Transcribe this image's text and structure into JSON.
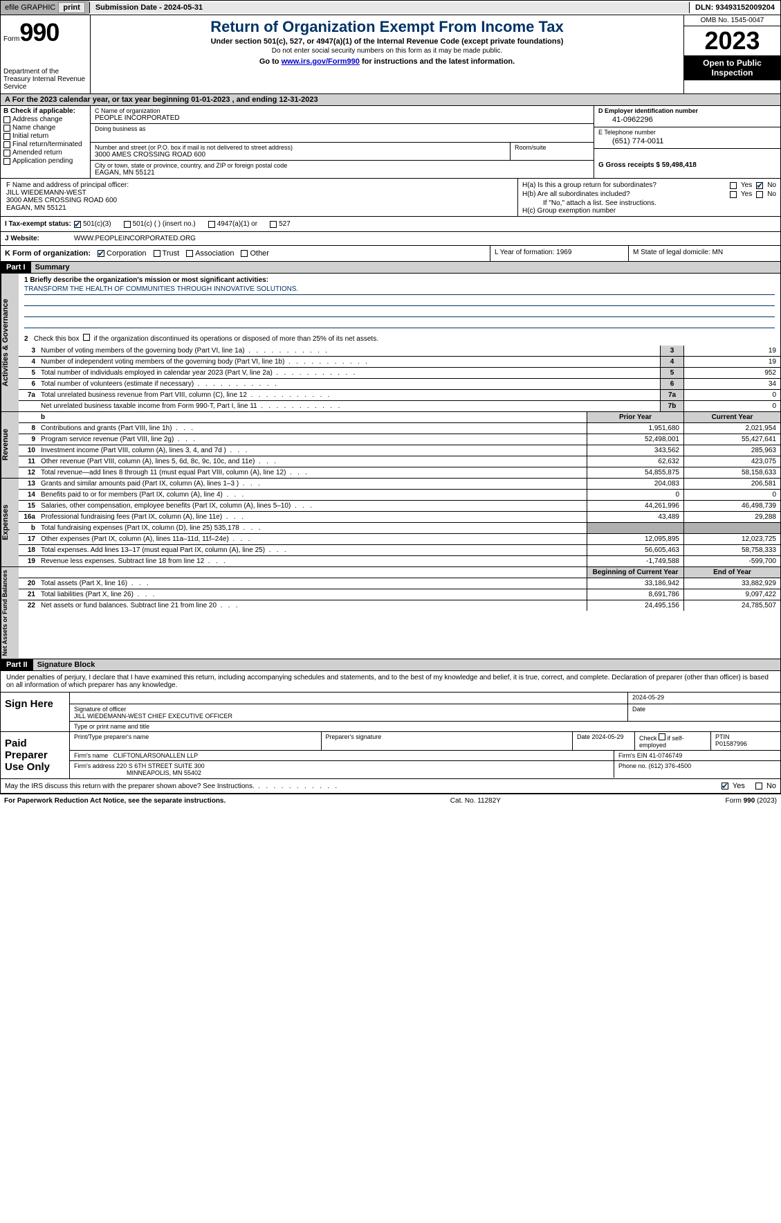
{
  "topbar": {
    "efile_label": "efile GRAPHIC",
    "print_btn": "print",
    "submission_label": "Submission Date - 2024-05-31",
    "dln_label": "DLN: 93493152009204"
  },
  "header": {
    "form_prefix": "Form",
    "form_number": "990",
    "dept": "Department of the Treasury Internal Revenue Service",
    "title": "Return of Organization Exempt From Income Tax",
    "sub": "Under section 501(c), 527, or 4947(a)(1) of the Internal Revenue Code (except private foundations)",
    "note": "Do not enter social security numbers on this form as it may be made public.",
    "link_prefix": "Go to ",
    "link_url": "www.irs.gov/Form990",
    "link_suffix": " for instructions and the latest information.",
    "omb": "OMB No. 1545-0047",
    "year": "2023",
    "open_pub": "Open to Public Inspection"
  },
  "period": {
    "text": "A  For the 2023 calendar year, or tax year beginning 01-01-2023   , and ending 12-31-2023"
  },
  "box_b": {
    "header": "B Check if applicable:",
    "items": [
      "Address change",
      "Name change",
      "Initial return",
      "Final return/terminated",
      "Amended return",
      "Application pending"
    ]
  },
  "box_c": {
    "name_lbl": "C Name of organization",
    "name_val": "PEOPLE INCORPORATED",
    "dba_lbl": "Doing business as",
    "street_lbl": "Number and street (or P.O. box if mail is not delivered to street address)",
    "street_val": "3000 AMES CROSSING ROAD 600",
    "room_lbl": "Room/suite",
    "city_lbl": "City or town, state or province, country, and ZIP or foreign postal code",
    "city_val": "EAGAN, MN  55121"
  },
  "box_d": {
    "ein_lbl": "D Employer identification number",
    "ein_val": "41-0962296",
    "tel_lbl": "E Telephone number",
    "tel_val": "(651) 774-0011",
    "gross_lbl": "G Gross receipts $ 59,498,418"
  },
  "box_f": {
    "lbl": "F  Name and address of principal officer:",
    "name": "JILL WIEDEMANN-WEST",
    "addr1": "3000 AMES CROSSING ROAD 600",
    "addr2": "EAGAN, MN  55121"
  },
  "box_h": {
    "a_lbl": "H(a)  Is this a group return for subordinates?",
    "b_lbl": "H(b)  Are all subordinates included?",
    "b_note": "If \"No,\" attach a list. See instructions.",
    "c_lbl": "H(c)  Group exemption number",
    "yes": "Yes",
    "no": "No"
  },
  "box_i": {
    "lbl": "I     Tax-exempt status:",
    "opts": [
      "501(c)(3)",
      "501(c) (  ) (insert no.)",
      "4947(a)(1) or",
      "527"
    ]
  },
  "box_j": {
    "lbl": "J    Website:",
    "val": "WWW.PEOPLEINCORPORATED.ORG"
  },
  "box_k": {
    "lbl": "K Form of organization:",
    "opts": [
      "Corporation",
      "Trust",
      "Association",
      "Other"
    ]
  },
  "box_l": {
    "lbl": "L Year of formation: 1969"
  },
  "box_m": {
    "lbl": "M State of legal domicile: MN"
  },
  "part1": {
    "tag": "Part I",
    "title": "Summary",
    "mission_lbl": "1     Briefly describe the organization's mission or most significant activities:",
    "mission_val": "TRANSFORM THE HEALTH OF COMMUNITIES THROUGH INNOVATIVE SOLUTIONS.",
    "line2": "Check this box      if the organization discontinued its operations or disposed of more than 25% of its net assets.",
    "vtabs": {
      "gov": "Activities & Governance",
      "rev": "Revenue",
      "exp": "Expenses",
      "net": "Net Assets or Fund Balances"
    },
    "cols": {
      "prior": "Prior Year",
      "current": "Current Year",
      "begin": "Beginning of Current Year",
      "end": "End of Year"
    },
    "gov_lines": [
      {
        "n": "3",
        "d": "Number of voting members of the governing body (Part VI, line 1a)",
        "box": "3",
        "v": "19"
      },
      {
        "n": "4",
        "d": "Number of independent voting members of the governing body (Part VI, line 1b)",
        "box": "4",
        "v": "19"
      },
      {
        "n": "5",
        "d": "Total number of individuals employed in calendar year 2023 (Part V, line 2a)",
        "box": "5",
        "v": "952"
      },
      {
        "n": "6",
        "d": "Total number of volunteers (estimate if necessary)",
        "box": "6",
        "v": "34"
      },
      {
        "n": "7a",
        "d": "Total unrelated business revenue from Part VIII, column (C), line 12",
        "box": "7a",
        "v": "0"
      },
      {
        "n": "",
        "d": "Net unrelated business taxable income from Form 990-T, Part I, line 11",
        "box": "7b",
        "v": "0"
      }
    ],
    "rev_lines": [
      {
        "n": "8",
        "d": "Contributions and grants (Part VIII, line 1h)",
        "p": "1,951,680",
        "c": "2,021,954"
      },
      {
        "n": "9",
        "d": "Program service revenue (Part VIII, line 2g)",
        "p": "52,498,001",
        "c": "55,427,641"
      },
      {
        "n": "10",
        "d": "Investment income (Part VIII, column (A), lines 3, 4, and 7d )",
        "p": "343,562",
        "c": "285,963"
      },
      {
        "n": "11",
        "d": "Other revenue (Part VIII, column (A), lines 5, 6d, 8c, 9c, 10c, and 11e)",
        "p": "62,632",
        "c": "423,075"
      },
      {
        "n": "12",
        "d": "Total revenue—add lines 8 through 11 (must equal Part VIII, column (A), line 12)",
        "p": "54,855,875",
        "c": "58,158,633"
      }
    ],
    "exp_lines": [
      {
        "n": "13",
        "d": "Grants and similar amounts paid (Part IX, column (A), lines 1–3 )",
        "p": "204,083",
        "c": "206,581"
      },
      {
        "n": "14",
        "d": "Benefits paid to or for members (Part IX, column (A), line 4)",
        "p": "0",
        "c": "0"
      },
      {
        "n": "15",
        "d": "Salaries, other compensation, employee benefits (Part IX, column (A), lines 5–10)",
        "p": "44,261,996",
        "c": "46,498,739"
      },
      {
        "n": "16a",
        "d": "Professional fundraising fees (Part IX, column (A), line 11e)",
        "p": "43,489",
        "c": "29,288"
      },
      {
        "n": "b",
        "d": "Total fundraising expenses (Part IX, column (D), line 25) 535,178",
        "p": "",
        "c": "",
        "grey": true
      },
      {
        "n": "17",
        "d": "Other expenses (Part IX, column (A), lines 11a–11d, 11f–24e)",
        "p": "12,095,895",
        "c": "12,023,725"
      },
      {
        "n": "18",
        "d": "Total expenses. Add lines 13–17 (must equal Part IX, column (A), line 25)",
        "p": "56,605,463",
        "c": "58,758,333"
      },
      {
        "n": "19",
        "d": "Revenue less expenses. Subtract line 18 from line 12",
        "p": "-1,749,588",
        "c": "-599,700"
      }
    ],
    "net_lines": [
      {
        "n": "20",
        "d": "Total assets (Part X, line 16)",
        "p": "33,186,942",
        "c": "33,882,929"
      },
      {
        "n": "21",
        "d": "Total liabilities (Part X, line 26)",
        "p": "8,691,786",
        "c": "9,097,422"
      },
      {
        "n": "22",
        "d": "Net assets or fund balances. Subtract line 21 from line 20",
        "p": "24,495,156",
        "c": "24,785,507"
      }
    ]
  },
  "part2": {
    "tag": "Part II",
    "title": "Signature Block",
    "decl": "Under penalties of perjury, I declare that I have examined this return, including accompanying schedules and statements, and to the best of my knowledge and belief, it is true, correct, and complete. Declaration of preparer (other than officer) is based on all information of which preparer has any knowledge.",
    "sign_here": "Sign Here",
    "sig_date": "2024-05-29",
    "sig_of_officer": "Signature of officer",
    "officer_name": "JILL WIEDEMANN-WEST CHIEF EXECUTIVE OFFICER",
    "type_name": "Type or print name and title",
    "date_lbl": "Date",
    "paid_prep": "Paid Preparer Use Only",
    "prep_name_lbl": "Print/Type preparer's name",
    "prep_sig_lbl": "Preparer's signature",
    "prep_date": "Date 2024-05-29",
    "check_self": "Check        if self-employed",
    "ptin_lbl": "PTIN",
    "ptin_val": "P01587996",
    "firm_name_lbl": "Firm's name",
    "firm_name_val": "CLIFTONLARSONALLEN LLP",
    "firm_ein": "Firm's EIN 41-0746749",
    "firm_addr_lbl": "Firm's address",
    "firm_addr1": "220 S 6TH STREET SUITE 300",
    "firm_addr2": "MINNEAPOLIS, MN  55402",
    "firm_phone": "Phone no. (612) 376-4500",
    "discuss": "May the IRS discuss this return with the preparer shown above? See Instructions."
  },
  "footer": {
    "left": "For Paperwork Reduction Act Notice, see the separate instructions.",
    "mid": "Cat. No. 11282Y",
    "right": "Form 990 (2023)"
  }
}
